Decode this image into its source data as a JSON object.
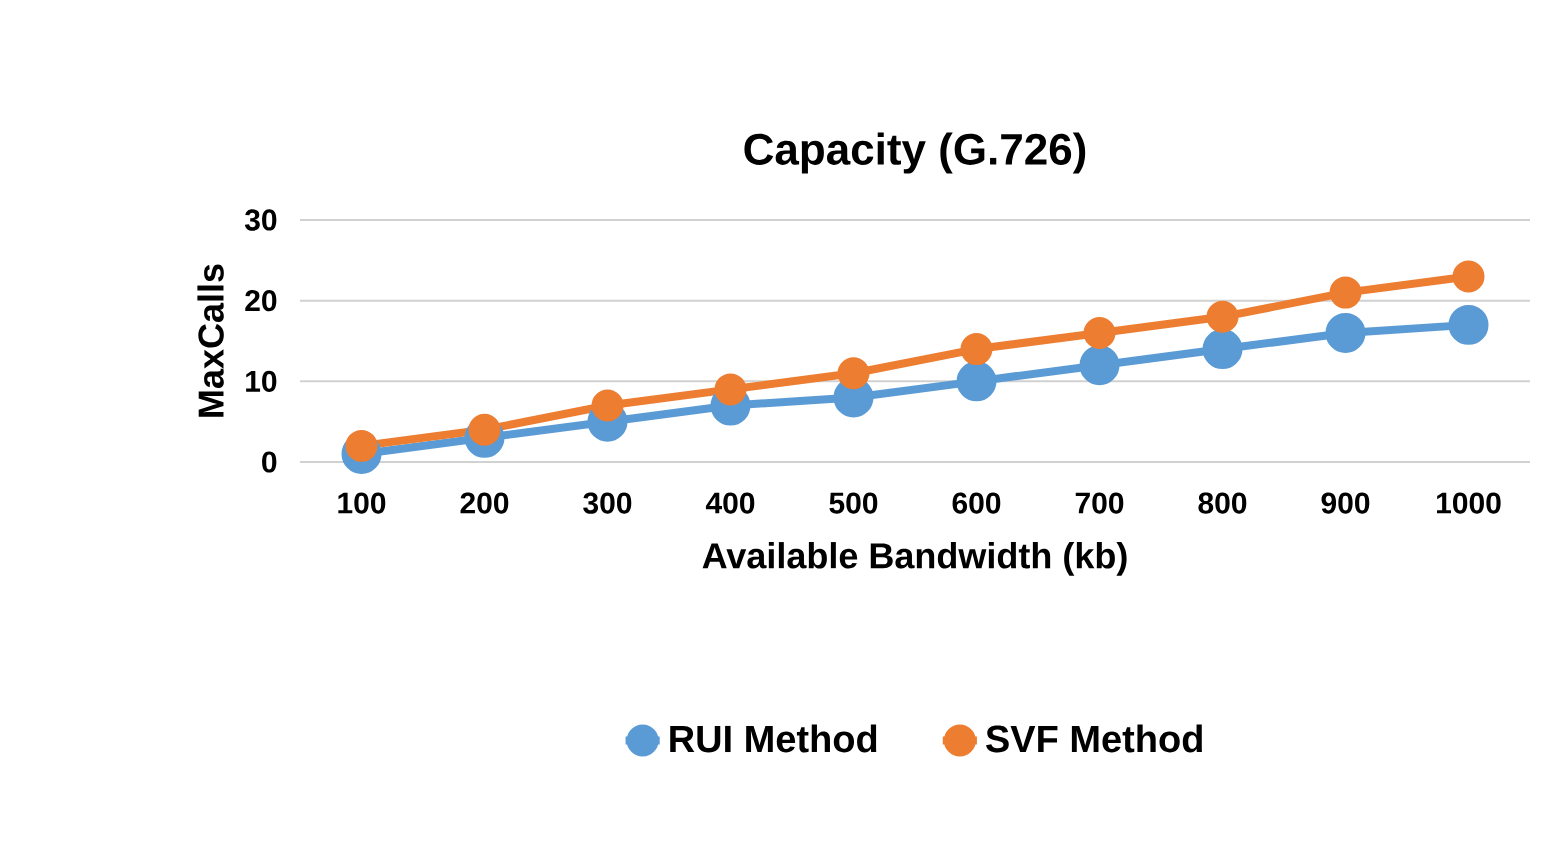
{
  "chart_data": {
    "type": "line",
    "title": "Capacity (G.726)",
    "xlabel": "Available Bandwidth (kb)",
    "ylabel": "MaxCalls",
    "categories": [
      "100",
      "200",
      "300",
      "400",
      "500",
      "600",
      "700",
      "800",
      "900",
      "1000"
    ],
    "series": [
      {
        "name": "RUI Method",
        "color": "#5b9bd5",
        "values": [
          1,
          3,
          5,
          7,
          8,
          10,
          12,
          14,
          16,
          17
        ]
      },
      {
        "name": "SVF Method",
        "color": "#ed7d31",
        "values": [
          2,
          4,
          7,
          9,
          11,
          14,
          16,
          18,
          21,
          23
        ]
      }
    ],
    "ylim": [
      0,
      30
    ],
    "yticks": [
      0,
      10,
      20,
      30
    ],
    "grid": "y",
    "legend": "bottom",
    "marker": "circle",
    "line_style": "solid"
  }
}
